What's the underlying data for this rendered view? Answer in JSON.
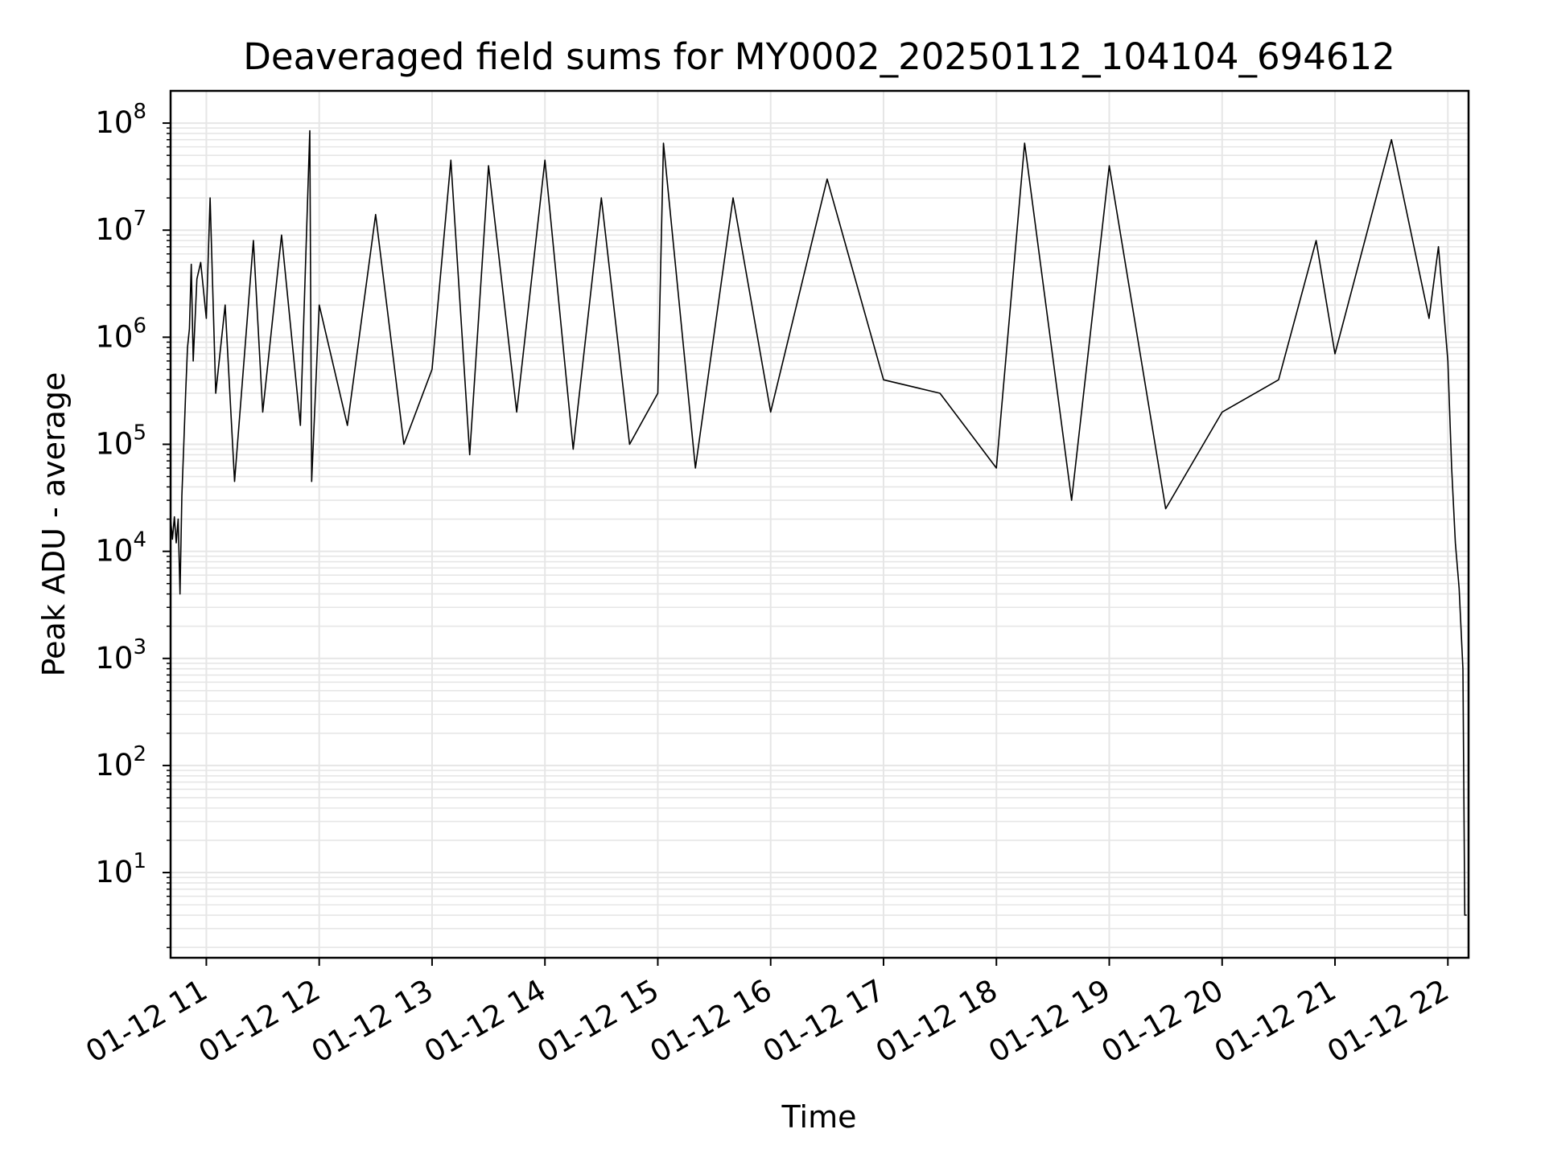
{
  "chart_data": {
    "type": "line",
    "title": "Deaveraged field sums for MY0002_20250112_104104_694612",
    "xlabel": "Time",
    "ylabel": "Peak ADU - average",
    "yscale": "log",
    "xlim": [
      "2025-01-12 10:41",
      "2025-01-12 22:11"
    ],
    "ylim": [
      1.6,
      200000000
    ],
    "grid": true,
    "grid_minor": true,
    "line_color": "#000000",
    "grid_color": "#e6e6e6",
    "x_ticks": [
      {
        "value": "2025-01-12 11:00",
        "label": "01-12 11"
      },
      {
        "value": "2025-01-12 12:00",
        "label": "01-12 12"
      },
      {
        "value": "2025-01-12 13:00",
        "label": "01-12 13"
      },
      {
        "value": "2025-01-12 14:00",
        "label": "01-12 14"
      },
      {
        "value": "2025-01-12 15:00",
        "label": "01-12 15"
      },
      {
        "value": "2025-01-12 16:00",
        "label": "01-12 16"
      },
      {
        "value": "2025-01-12 17:00",
        "label": "01-12 17"
      },
      {
        "value": "2025-01-12 18:00",
        "label": "01-12 18"
      },
      {
        "value": "2025-01-12 19:00",
        "label": "01-12 19"
      },
      {
        "value": "2025-01-12 20:00",
        "label": "01-12 20"
      },
      {
        "value": "2025-01-12 21:00",
        "label": "01-12 21"
      },
      {
        "value": "2025-01-12 22:00",
        "label": "01-12 22"
      }
    ],
    "y_ticks": [
      {
        "value": 10,
        "base": "10",
        "exp": "1"
      },
      {
        "value": 100,
        "base": "10",
        "exp": "2"
      },
      {
        "value": 1000,
        "base": "10",
        "exp": "3"
      },
      {
        "value": 10000,
        "base": "10",
        "exp": "4"
      },
      {
        "value": 100000,
        "base": "10",
        "exp": "5"
      },
      {
        "value": 1000000,
        "base": "10",
        "exp": "6"
      },
      {
        "value": 10000000,
        "base": "10",
        "exp": "7"
      },
      {
        "value": 100000000,
        "base": "10",
        "exp": "8"
      }
    ],
    "series": [
      {
        "points": [
          [
            "2025-01-12 10:41",
            20000
          ],
          [
            "2025-01-12 10:42",
            13000
          ],
          [
            "2025-01-12 10:43",
            21000
          ],
          [
            "2025-01-12 10:44",
            12000
          ],
          [
            "2025-01-12 10:45",
            20000
          ],
          [
            "2025-01-12 10:46",
            4000
          ],
          [
            "2025-01-12 10:47",
            33000
          ],
          [
            "2025-01-12 10:48",
            100000
          ],
          [
            "2025-01-12 10:49",
            300000
          ],
          [
            "2025-01-12 10:50",
            800000
          ],
          [
            "2025-01-12 10:51",
            1200000
          ],
          [
            "2025-01-12 10:52",
            4800000
          ],
          [
            "2025-01-12 10:53",
            600000
          ],
          [
            "2025-01-12 10:55",
            3500000
          ],
          [
            "2025-01-12 10:57",
            5000000
          ],
          [
            "2025-01-12 11:00",
            1500000
          ],
          [
            "2025-01-12 11:02",
            20000000
          ],
          [
            "2025-01-12 11:05",
            300000
          ],
          [
            "2025-01-12 11:10",
            2000000
          ],
          [
            "2025-01-12 11:15",
            45000
          ],
          [
            "2025-01-12 11:25",
            8000000
          ],
          [
            "2025-01-12 11:30",
            200000
          ],
          [
            "2025-01-12 11:40",
            9000000
          ],
          [
            "2025-01-12 11:50",
            150000
          ],
          [
            "2025-01-12 11:55",
            85000000
          ],
          [
            "2025-01-12 11:56",
            45000
          ],
          [
            "2025-01-12 12:00",
            2000000
          ],
          [
            "2025-01-12 12:15",
            150000
          ],
          [
            "2025-01-12 12:30",
            14000000
          ],
          [
            "2025-01-12 12:45",
            100000
          ],
          [
            "2025-01-12 13:00",
            500000
          ],
          [
            "2025-01-12 13:10",
            45000000
          ],
          [
            "2025-01-12 13:20",
            80000
          ],
          [
            "2025-01-12 13:30",
            40000000
          ],
          [
            "2025-01-12 13:45",
            200000
          ],
          [
            "2025-01-12 14:00",
            45000000
          ],
          [
            "2025-01-12 14:15",
            90000
          ],
          [
            "2025-01-12 14:30",
            20000000
          ],
          [
            "2025-01-12 14:45",
            100000
          ],
          [
            "2025-01-12 15:00",
            300000
          ],
          [
            "2025-01-12 15:03",
            65000000
          ],
          [
            "2025-01-12 15:20",
            60000
          ],
          [
            "2025-01-12 15:40",
            20000000
          ],
          [
            "2025-01-12 16:00",
            200000
          ],
          [
            "2025-01-12 16:30",
            30000000
          ],
          [
            "2025-01-12 17:00",
            400000
          ],
          [
            "2025-01-12 17:30",
            300000
          ],
          [
            "2025-01-12 18:00",
            60000
          ],
          [
            "2025-01-12 18:15",
            65000000
          ],
          [
            "2025-01-12 18:40",
            30000
          ],
          [
            "2025-01-12 19:00",
            40000000
          ],
          [
            "2025-01-12 19:30",
            25000
          ],
          [
            "2025-01-12 20:00",
            200000
          ],
          [
            "2025-01-12 20:30",
            400000
          ],
          [
            "2025-01-12 20:50",
            8000000
          ],
          [
            "2025-01-12 21:00",
            700000
          ],
          [
            "2025-01-12 21:30",
            70000000
          ],
          [
            "2025-01-12 21:50",
            1500000
          ],
          [
            "2025-01-12 21:55",
            7000000
          ],
          [
            "2025-01-12 22:00",
            600000
          ],
          [
            "2025-01-12 22:02",
            60000
          ],
          [
            "2025-01-12 22:04",
            12000
          ],
          [
            "2025-01-12 22:06",
            4500
          ],
          [
            "2025-01-12 22:08",
            800
          ],
          [
            "2025-01-12 22:09",
            4
          ],
          [
            "2025-01-12 22:10",
            4
          ]
        ]
      }
    ]
  }
}
